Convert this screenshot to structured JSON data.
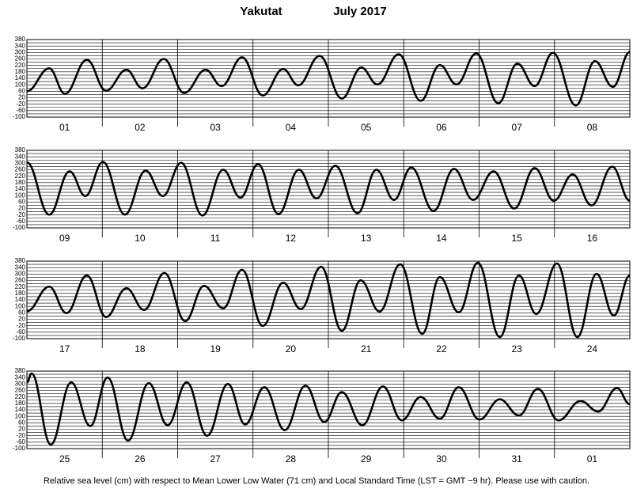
{
  "title": "Yakutat",
  "subtitle": "July  2017",
  "note": "Relative sea level (cm) with respect to Mean Lower Low Water (71 cm) and Local Standard Time (LST = GMT −9 hr). Please use with caution.",
  "chart_data": [
    {
      "type": "line",
      "color": "#000000",
      "grid": true,
      "categories": [
        "01",
        "02",
        "03",
        "04",
        "05",
        "06",
        "07",
        "08"
      ],
      "xlim": [
        0,
        192
      ],
      "ylim": [
        -100,
        380
      ],
      "yticks": [
        380,
        340,
        300,
        260,
        220,
        180,
        140,
        100,
        60,
        20,
        -20,
        -60,
        -100
      ],
      "ygrid": [
        -100,
        -80,
        -60,
        -40,
        -20,
        0,
        20,
        40,
        60,
        80,
        100,
        120,
        140,
        160,
        180,
        200,
        220,
        240,
        260,
        280,
        300,
        320,
        340,
        360,
        380
      ],
      "x": [
        0,
        7.1,
        12.1,
        19.1,
        25.2,
        31.7,
        36.8,
        43.6,
        50.1,
        56.9,
        62.0,
        68.5,
        75.1,
        81.6,
        86.4,
        93.2,
        100.3,
        106.5,
        111.6,
        118.4,
        125.4,
        131.5,
        136.8,
        143.1,
        150.1,
        156.2,
        161.7,
        167.5,
        174.8,
        180.9,
        186.6,
        192
      ],
      "values": [
        60,
        202,
        44,
        255,
        63,
        193,
        78,
        260,
        49,
        193,
        92,
        270,
        34,
        198,
        97,
        279,
        15,
        207,
        102,
        289,
        1,
        222,
        102,
        294,
        -14,
        231,
        92,
        298,
        -28,
        246,
        87,
        303
      ]
    },
    {
      "type": "line",
      "color": "#000000",
      "grid": true,
      "categories": [
        "09",
        "10",
        "11",
        "12",
        "13",
        "14",
        "15",
        "16"
      ],
      "xlim": [
        0,
        192
      ],
      "ylim": [
        -100,
        380
      ],
      "yticks": [
        380,
        340,
        300,
        260,
        220,
        180,
        140,
        100,
        60,
        20,
        -20,
        -60,
        -100
      ],
      "ygrid": [
        -100,
        -80,
        -60,
        -40,
        -20,
        0,
        20,
        40,
        60,
        80,
        100,
        120,
        140,
        160,
        180,
        200,
        220,
        240,
        260,
        280,
        300,
        320,
        340,
        360,
        380
      ],
      "x": [
        0,
        7.1,
        13.6,
        18.6,
        24.2,
        31.2,
        37.8,
        43.3,
        49.1,
        55.9,
        62.5,
        68.0,
        73.6,
        80.1,
        86.6,
        92.2,
        98.2,
        105.3,
        111.3,
        116.9,
        122.4,
        129.5,
        136.0,
        142.1,
        148.6,
        155.2,
        161.7,
        167.8,
        173.8,
        179.8,
        186.4,
        192
      ],
      "values": [
        305,
        -18,
        250,
        97,
        308,
        -18,
        255,
        97,
        303,
        -23,
        260,
        87,
        294,
        -14,
        260,
        82,
        284,
        -9,
        260,
        73,
        274,
        5,
        265,
        73,
        250,
        20,
        270,
        68,
        231,
        39,
        279,
        68
      ]
    },
    {
      "type": "line",
      "color": "#000000",
      "grid": true,
      "categories": [
        "17",
        "18",
        "19",
        "20",
        "21",
        "22",
        "23",
        "24"
      ],
      "xlim": [
        0,
        192
      ],
      "ylim": [
        -100,
        380
      ],
      "yticks": [
        380,
        340,
        300,
        260,
        220,
        180,
        140,
        100,
        60,
        20,
        -20,
        -60,
        -100
      ],
      "ygrid": [
        -100,
        -80,
        -60,
        -40,
        -20,
        0,
        20,
        40,
        60,
        80,
        100,
        120,
        140,
        160,
        180,
        200,
        220,
        240,
        260,
        280,
        300,
        320,
        340,
        360,
        380
      ],
      "x": [
        0,
        7.1,
        12.6,
        19.1,
        25.2,
        31.7,
        37.3,
        43.8,
        50.4,
        56.4,
        62.5,
        68.5,
        75.1,
        81.6,
        87.2,
        93.7,
        100.3,
        106.3,
        112.3,
        118.9,
        125.9,
        131.5,
        137.5,
        143.6,
        150.6,
        156.7,
        162.2,
        168.8,
        175.3,
        181.4,
        186.9,
        192
      ],
      "values": [
        70,
        222,
        58,
        291,
        34,
        212,
        78,
        306,
        9,
        227,
        88,
        326,
        -21,
        246,
        83,
        345,
        -51,
        261,
        68,
        360,
        -70,
        281,
        63,
        370,
        -90,
        291,
        53,
        365,
        -90,
        301,
        43,
        291
      ]
    },
    {
      "type": "line",
      "color": "#000000",
      "grid": true,
      "categories": [
        "25",
        "26",
        "27",
        "28",
        "29",
        "30",
        "31",
        "01"
      ],
      "xlim": [
        0,
        192
      ],
      "ylim": [
        -100,
        380
      ],
      "yticks": [
        380,
        340,
        300,
        260,
        220,
        180,
        140,
        100,
        60,
        20,
        -20,
        -60,
        -100
      ],
      "ygrid": [
        -100,
        -80,
        -60,
        -40,
        -20,
        0,
        20,
        40,
        60,
        80,
        100,
        120,
        140,
        160,
        180,
        200,
        220,
        240,
        260,
        280,
        300,
        320,
        340,
        360,
        380
      ],
      "x": [
        0,
        1.5,
        7.6,
        14.1,
        20.2,
        25.7,
        32.2,
        38.8,
        44.8,
        50.9,
        57.4,
        64.0,
        69.5,
        75.6,
        82.1,
        88.7,
        94.7,
        100.3,
        106.8,
        113.4,
        119.4,
        125.4,
        131.5,
        137.5,
        144.1,
        150.6,
        156.7,
        162.7,
        169.3,
        176.3,
        181.9,
        187.9,
        192
      ],
      "values": [
        310,
        365,
        -75,
        310,
        40,
        340,
        -50,
        305,
        45,
        310,
        -20,
        300,
        50,
        280,
        15,
        290,
        65,
        250,
        45,
        285,
        75,
        220,
        85,
        280,
        80,
        205,
        105,
        270,
        75,
        195,
        130,
        275,
        175
      ]
    }
  ]
}
